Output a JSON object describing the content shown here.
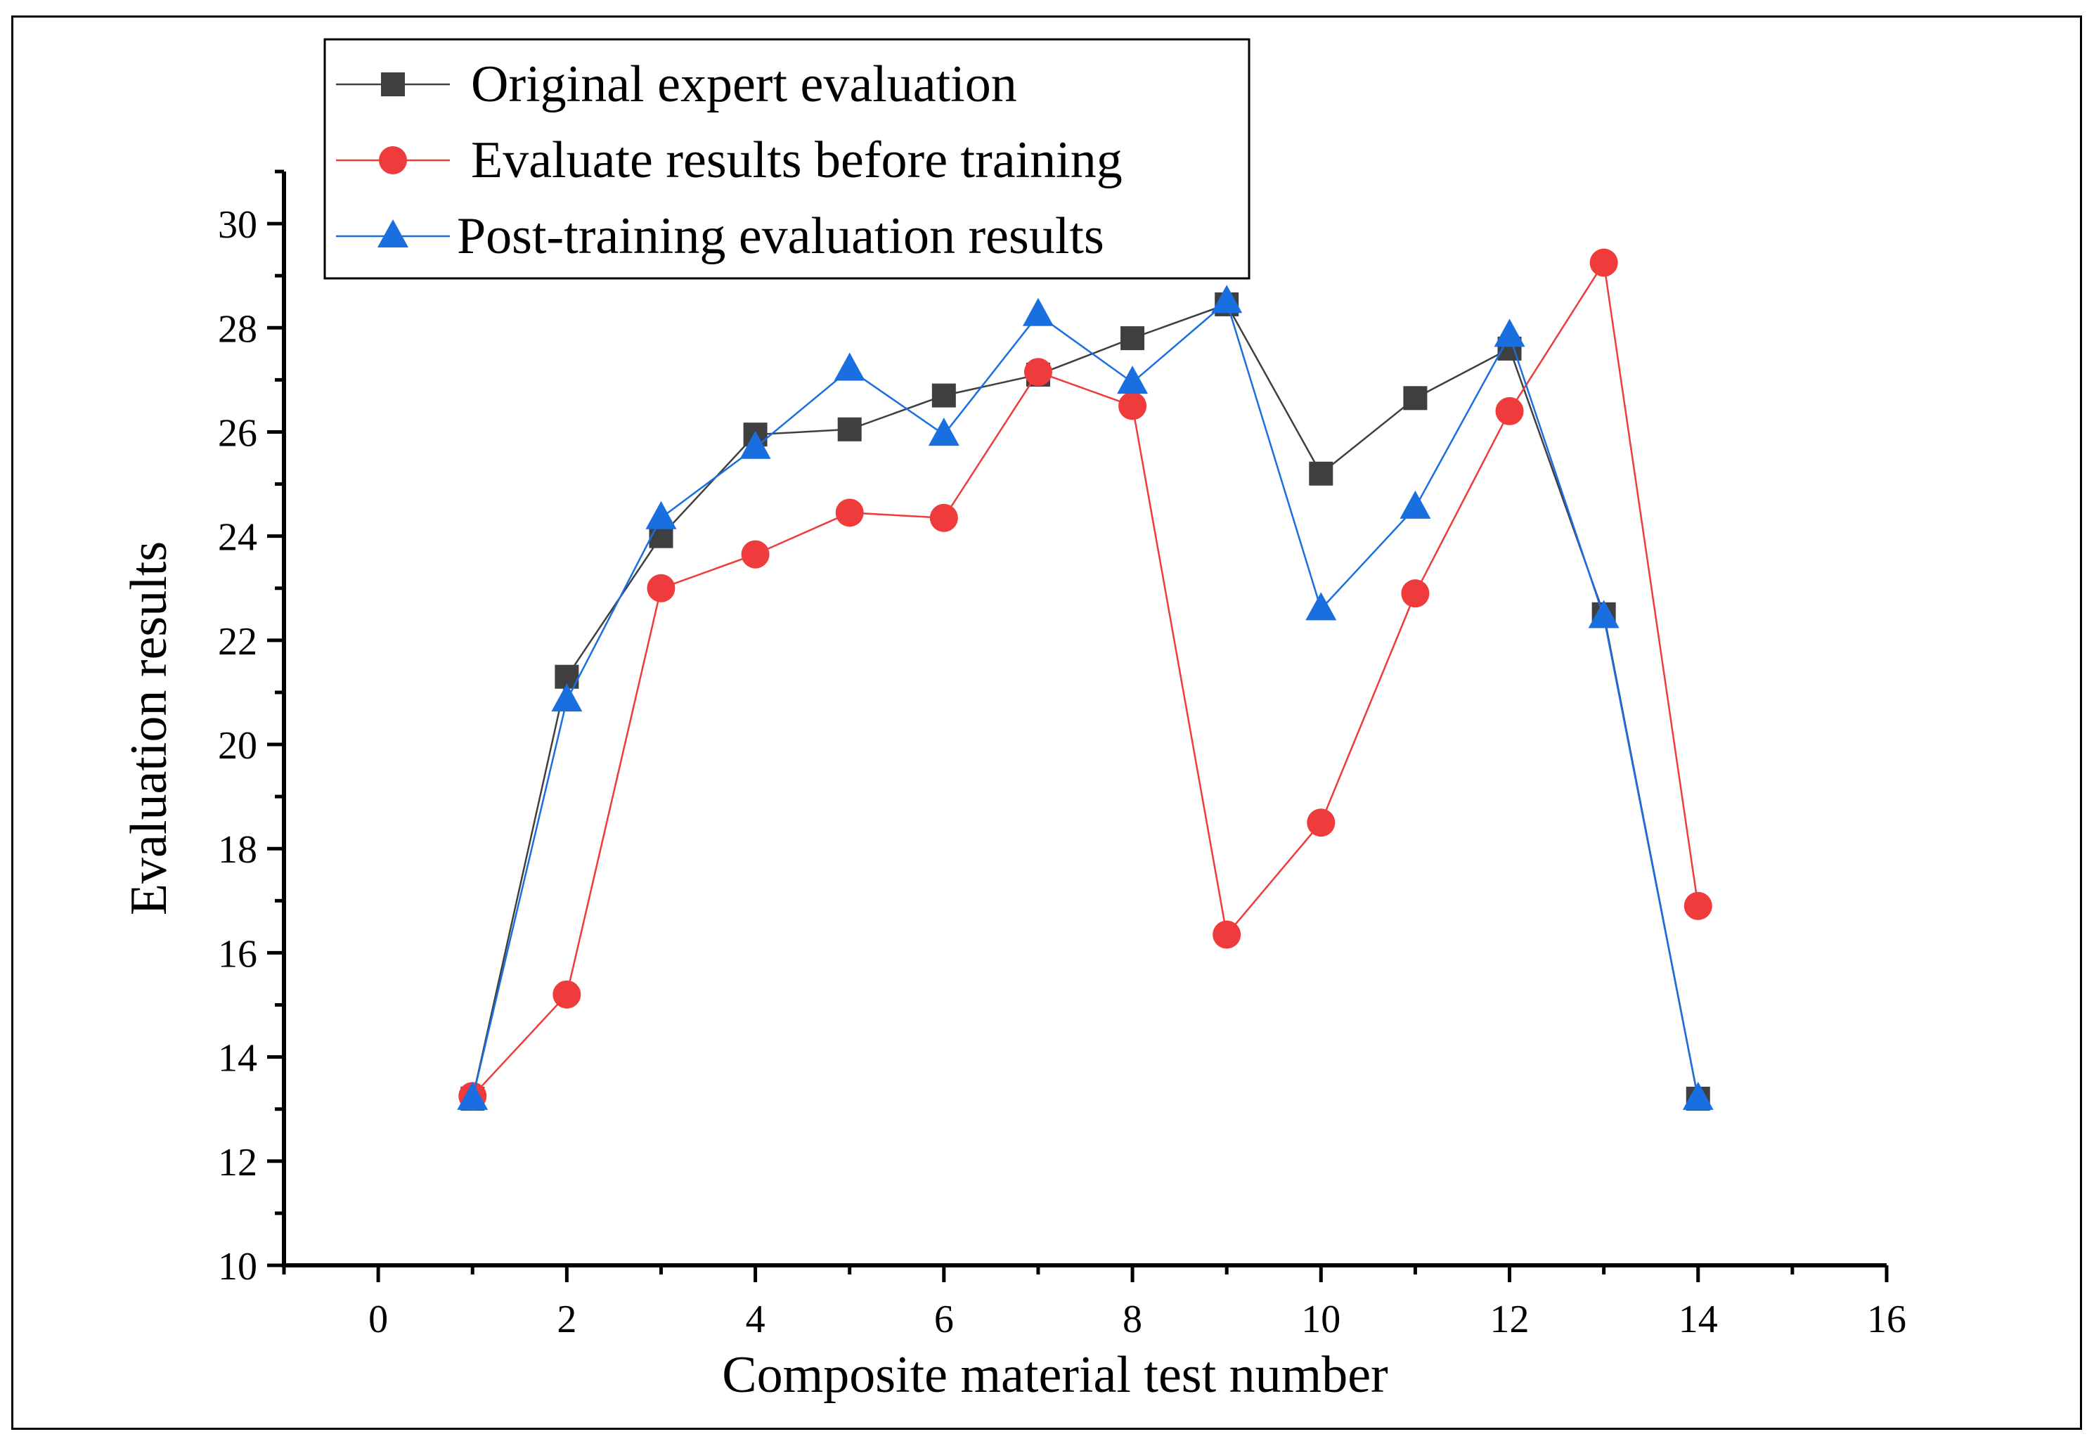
{
  "chart_data": {
    "type": "line",
    "xlabel": "Composite material test number",
    "ylabel": "Evaluation results",
    "xlim": [
      -1,
      16
    ],
    "ylim": [
      10,
      31
    ],
    "xticks": [
      0,
      2,
      4,
      6,
      8,
      10,
      12,
      14,
      16
    ],
    "yticks": [
      10,
      12,
      14,
      16,
      18,
      20,
      22,
      24,
      26,
      28,
      30
    ],
    "legend_position": "top-left",
    "x": [
      1,
      2,
      3,
      4,
      5,
      6,
      7,
      8,
      9,
      10,
      11,
      12,
      13,
      14
    ],
    "series": [
      {
        "name": "Original expert evaluation",
        "color": "#3f3f3f",
        "marker": "square",
        "values": [
          13.2,
          21.3,
          24.0,
          25.95,
          26.05,
          26.7,
          27.1,
          27.8,
          28.45,
          25.2,
          26.65,
          27.6,
          22.5,
          13.2
        ]
      },
      {
        "name": "Evaluate results before training",
        "color": "#ef3b3b",
        "marker": "circle",
        "values": [
          13.25,
          15.2,
          23.0,
          23.65,
          24.45,
          24.35,
          27.15,
          26.5,
          16.35,
          18.5,
          22.9,
          26.4,
          29.25,
          16.9
        ]
      },
      {
        "name": "Post-training evaluation results",
        "color": "#1a6fe0",
        "marker": "triangle",
        "values": [
          13.2,
          20.85,
          24.35,
          25.7,
          27.2,
          25.95,
          28.25,
          26.95,
          28.5,
          22.6,
          24.55,
          27.85,
          22.45,
          13.2
        ]
      }
    ]
  }
}
